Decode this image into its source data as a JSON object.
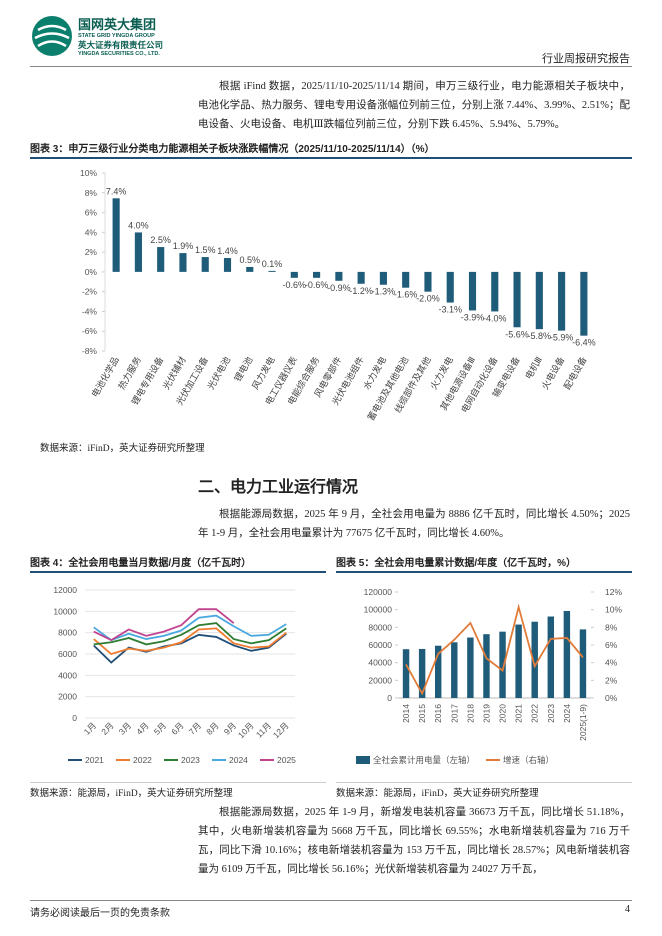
{
  "header": {
    "group": "国网英大集团",
    "group_en": "STATE GRID YINGDA GROUP",
    "company": "英大证券有限责任公司",
    "company_en": "YINGDA SECURITIES CO., LTD.",
    "report_type": "行业周报研究报告"
  },
  "paragraphs": [
    "根据 iFind 数据，2025/11/10-2025/11/14 期间，申万三级行业，电力能源相关子板块中，电池化学品、热力服务、锂电专用设备涨幅位列前三位，分别上涨 7.44%、3.99%、2.51%；配电设备、火电设备、电机Ⅲ跌幅位列前三位，分别下跌 6.45%、5.94%、5.79%。",
    "根据能源局数据，2025 年 9 月，全社会用电量为 8886 亿千瓦时，同比增长 4.50%；2025 年 1-9 月，全社会用电量累计为 77675 亿千瓦时，同比增长 4.60%。",
    "根据能源局数据，2025 年 1-9 月，新增发电装机容量 36673 万千瓦，同比增长 51.18%，其中，火电新增装机容量为 5668 万千瓦，同比增长 69.55%；水电新增装机容量为 716 万千瓦，同比下滑 10.16%；核电新增装机容量为 153 万千瓦，同比增长 28.57%；风电新增装机容量为 6109 万千瓦，同比增长 56.16%；光伏新增装机容量为 24027 万千瓦，"
  ],
  "section_heading": "二、电力工业运行情况",
  "footer": {
    "disclaimer": "请务必阅读最后一页的免责条款",
    "page": "4"
  },
  "chart_data": [
    {
      "type": "bar",
      "title": "图表 3：申万三级行业分类电力能源相关子板块涨跌幅情况（2025/11/10-2025/11/14）（%）",
      "source": "数据来源：iFinD，英大证券研究所整理",
      "categories": [
        "电池化学品",
        "热力服务",
        "锂电专用设备",
        "光伏辅材",
        "光伏加工设备",
        "光伏电池",
        "锂电池",
        "风力发电",
        "电工仪器仪表",
        "电能综合服务",
        "风电零部件",
        "光伏电池组件",
        "水力发电",
        "蓄电池及其他电池",
        "线缆部件及其他",
        "火力发电",
        "其他电源设备Ⅲ",
        "电网自动化设备",
        "输变电设备",
        "电机Ⅲ",
        "火电设备",
        "配电设备"
      ],
      "values": [
        7.44,
        3.99,
        2.51,
        1.9,
        1.5,
        1.4,
        0.5,
        0.1,
        -0.6,
        -0.6,
        -0.9,
        -1.2,
        -1.3,
        -1.6,
        -2.0,
        -3.1,
        -3.9,
        -4.0,
        -5.6,
        -5.79,
        -5.94,
        -6.45
      ],
      "value_labels": [
        "7.4%",
        "4.0%",
        "2.5%",
        "1.9%",
        "1.5%",
        "1.4%",
        "0.5%",
        "0.1%",
        "-0.6%",
        "-0.6%",
        "-0.9%",
        "-1.2%",
        "-1.3%",
        "-1.6%",
        "-2.0%",
        "-3.1%",
        "-3.9%",
        "-4.0%",
        "-5.6%",
        "-5.8%",
        "-5.9%",
        "-6.4%"
      ],
      "color": "#1f5c7a",
      "ylim": [
        -8,
        10
      ],
      "yticks": [
        {
          "value": -8,
          "label": "-8%"
        },
        {
          "value": -6,
          "label": "-6%"
        },
        {
          "value": -4,
          "label": "-4%"
        },
        {
          "value": -2,
          "label": "-2%"
        },
        {
          "value": 0,
          "label": "0%"
        },
        {
          "value": 2,
          "label": "2%"
        },
        {
          "value": 4,
          "label": "4%"
        },
        {
          "value": 6,
          "label": "6%"
        },
        {
          "value": 8,
          "label": "8%"
        },
        {
          "value": 10,
          "label": "10%"
        }
      ]
    },
    {
      "type": "line",
      "title": "图表 4：全社会用电量当月数据/月度（亿千瓦时）",
      "source": "数据来源：能源局，iFinD，英大证券研究所整理",
      "categories": [
        "1月",
        "2月",
        "3月",
        "4月",
        "5月",
        "6月",
        "7月",
        "8月",
        "9月",
        "10月",
        "11月",
        "12月"
      ],
      "series": [
        {
          "name": "2021",
          "color": "#1f4e79",
          "values": [
            6800,
            5200,
            6600,
            6200,
            6700,
            7000,
            7800,
            7600,
            6800,
            6300,
            6600,
            7900
          ]
        },
        {
          "name": "2022",
          "color": "#ed7d31",
          "values": [
            7400,
            6000,
            6500,
            6300,
            6600,
            7100,
            8300,
            8400,
            7000,
            6600,
            6700,
            8000
          ]
        },
        {
          "name": "2023",
          "color": "#2e7d32",
          "values": [
            6900,
            7100,
            7500,
            6900,
            7200,
            7800,
            8700,
            8900,
            7400,
            7000,
            7300,
            8400
          ]
        },
        {
          "name": "2024",
          "color": "#4aa8e0",
          "values": [
            8500,
            7300,
            7900,
            7400,
            7700,
            8200,
            9400,
            9600,
            8600,
            7700,
            7800,
            8800
          ]
        },
        {
          "name": "2025",
          "color": "#c2448f",
          "values": [
            8100,
            7300,
            8300,
            7700,
            8100,
            8700,
            10200,
            10200,
            8886,
            null,
            null,
            null
          ]
        }
      ],
      "ylim": [
        0,
        12000
      ],
      "yticks": [
        0,
        2000,
        4000,
        6000,
        8000,
        10000,
        12000
      ],
      "grid": true,
      "legend": "bottom"
    },
    {
      "type": "combo",
      "title": "图表 5：全社会用电量累计数据/年度（亿千瓦时，%）",
      "source": "数据来源：能源局，iFinD，英大证券研究所整理",
      "categories": [
        "2014",
        "2015",
        "2016",
        "2017",
        "2018",
        "2019",
        "2020",
        "2021",
        "2022",
        "2023",
        "2024",
        "2025(1-9)"
      ],
      "series": [
        {
          "name": "全社会累计用电量（左轴）",
          "color": "#1f5c7a",
          "axis": "y",
          "values": [
            55233,
            55500,
            59198,
            63077,
            68449,
            72255,
            75110,
            83128,
            86372,
            92241,
            98521,
            77675
          ]
        },
        {
          "name": "增速（右轴）",
          "color": "#e07b39",
          "axis": "y2",
          "values": [
            3.8,
            0.5,
            5.0,
            6.6,
            8.5,
            4.5,
            3.1,
            10.3,
            3.6,
            6.7,
            6.8,
            4.6
          ]
        }
      ],
      "ylim": [
        0,
        120000
      ],
      "yticks": [
        0,
        20000,
        40000,
        60000,
        80000,
        100000,
        120000
      ],
      "y2lim": [
        0,
        12
      ],
      "y2ticks": [
        {
          "value": 0,
          "label": "0%"
        },
        {
          "value": 2,
          "label": "2%"
        },
        {
          "value": 4,
          "label": "4%"
        },
        {
          "value": 6,
          "label": "6%"
        },
        {
          "value": 8,
          "label": "8%"
        },
        {
          "value": 10,
          "label": "10%"
        },
        {
          "value": 12,
          "label": "12%"
        }
      ],
      "legend": "bottom"
    }
  ]
}
